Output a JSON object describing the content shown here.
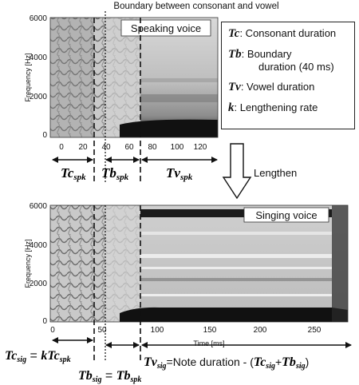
{
  "boundary_annotation": "Boundary between consonant and vowel",
  "speaking": {
    "title": "Speaking voice",
    "ylabel": "Frequency [Hz]",
    "yticks": [
      "6000",
      "4000",
      "2000",
      "0"
    ],
    "xticks": [
      "0",
      "20",
      "40",
      "60",
      "80",
      "100",
      "120"
    ]
  },
  "singing": {
    "title": "Singing voice",
    "ylabel": "Frequency [Hz]",
    "yticks": [
      "6000",
      "4000",
      "2000",
      "0"
    ],
    "xticks": [
      "0",
      "50",
      "100",
      "150",
      "200",
      "250"
    ],
    "xlabel": "Time [ms]"
  },
  "legend": {
    "tc_sym": "Tc",
    "tc_text": ": Consonant duration",
    "tb_sym": "Tb",
    "tb_text": ": Boundary",
    "tb_text2": "duration (40 ms)",
    "tv_sym": "Tv",
    "tv_text": ": Vowel duration",
    "k_sym": "k",
    "k_text": ": Lengthening rate"
  },
  "lengthen_label": "Lengthen",
  "speaking_durations": {
    "tc": "Tc",
    "tc_sub": "spk",
    "tb": "Tb",
    "tb_sub": "spk",
    "tv": "Tv",
    "tv_sub": "spk"
  },
  "singing_durations": {
    "tc_lhs": "Tc",
    "tc_lhs_sub": "sig",
    "tc_eq": " = ",
    "tc_k": "kTc",
    "tc_k_sub": "spk",
    "tb_lhs": "Tb",
    "tb_lhs_sub": "sig",
    "tb_eq": " = ",
    "tb_rhs": "Tb",
    "tb_rhs_sub": "spk",
    "tv_lhs": "Tv",
    "tv_lhs_sub": "sig",
    "tv_eq": "=Note duration - (",
    "tv_a": "Tc",
    "tv_a_sub": "sig",
    "tv_plus": "+",
    "tv_b": "Tb",
    "tv_b_sub": "sig",
    "tv_close": ")"
  },
  "colors": {
    "ink": "#111111",
    "spectrogram_light": "#e6e6e6",
    "spectrogram_dark": "#1a1a1a"
  }
}
